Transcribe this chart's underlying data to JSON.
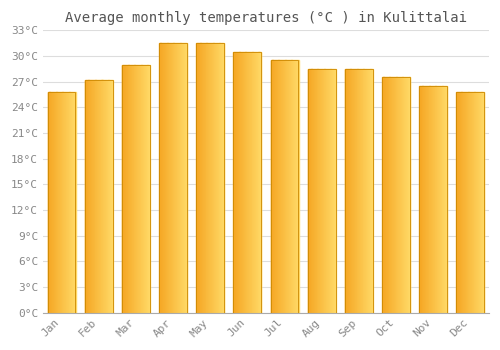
{
  "title": "Average monthly temperatures (°C ) in Kulittalai",
  "months": [
    "Jan",
    "Feb",
    "Mar",
    "Apr",
    "May",
    "Jun",
    "Jul",
    "Aug",
    "Sep",
    "Oct",
    "Nov",
    "Dec"
  ],
  "temperatures": [
    25.8,
    27.2,
    29.0,
    31.5,
    31.5,
    30.5,
    29.5,
    28.5,
    28.5,
    27.5,
    26.5,
    25.8
  ],
  "bar_color_left": "#F5A623",
  "bar_color_right": "#FFD966",
  "bar_edge_color": "#CC8800",
  "ylim": [
    0,
    33
  ],
  "yticks": [
    0,
    3,
    6,
    9,
    12,
    15,
    18,
    21,
    24,
    27,
    30,
    33
  ],
  "ytick_labels": [
    "0°C",
    "3°C",
    "6°C",
    "9°C",
    "12°C",
    "15°C",
    "18°C",
    "21°C",
    "24°C",
    "27°C",
    "30°C",
    "33°C"
  ],
  "background_color": "#ffffff",
  "grid_color": "#dddddd",
  "title_fontsize": 10,
  "tick_fontsize": 8,
  "bar_width": 0.75,
  "font_family": "monospace"
}
